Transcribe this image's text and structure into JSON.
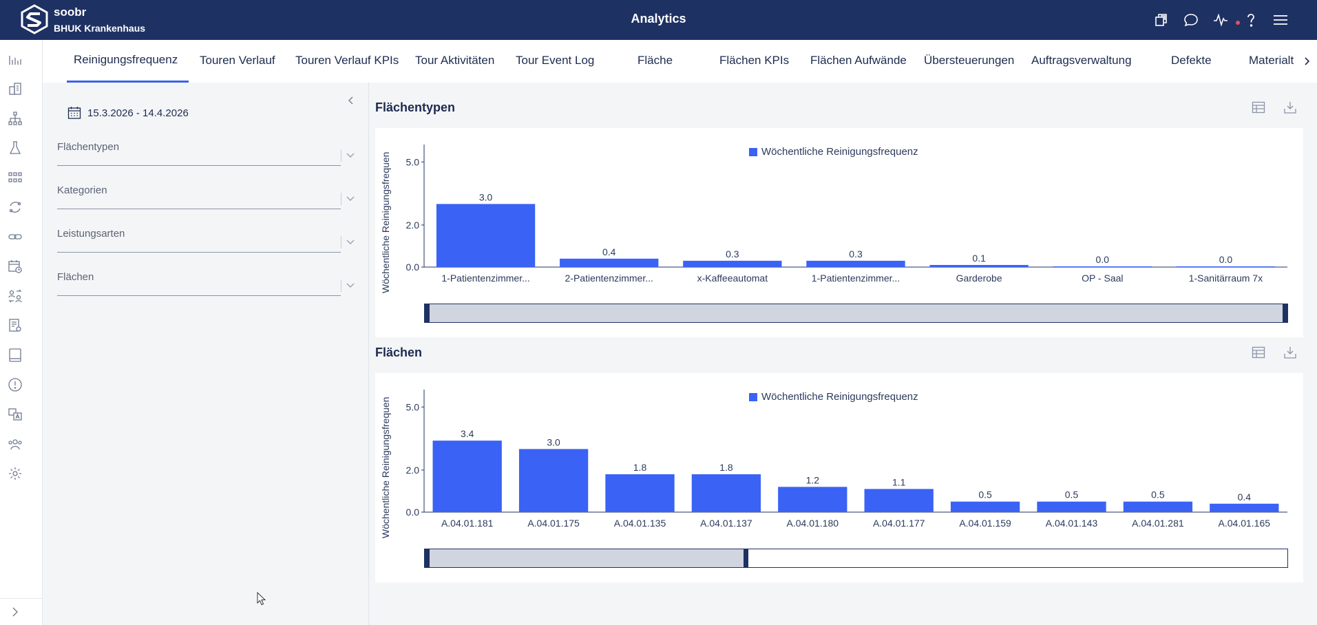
{
  "header": {
    "brand_name": "soobr",
    "brand_sub": "BHUK Krankenhaus",
    "title": "Analytics",
    "icons": [
      "copy-icon",
      "chat-icon",
      "activity-icon",
      "help-icon",
      "menu-icon"
    ]
  },
  "rail": {
    "items": [
      "bar-chart-icon",
      "building-icon",
      "hierarchy-icon",
      "flask-icon",
      "grid-icon",
      "cycle-icon",
      "link-icon",
      "calendar-clock-icon",
      "swap-users-icon",
      "report-icon",
      "tablet-icon",
      "alert-icon",
      "translate-icon",
      "team-icon",
      "settings-icon"
    ],
    "toggle": "chevron-right-icon"
  },
  "tabs": [
    {
      "label": "Reinigungsfrequenz",
      "active": true
    },
    {
      "label": "Touren Verlauf"
    },
    {
      "label": "Touren Verlauf KPIs"
    },
    {
      "label": "Tour Aktivitäten"
    },
    {
      "label": "Tour Event Log"
    },
    {
      "label": "Fläche"
    },
    {
      "label": "Flächen KPIs"
    },
    {
      "label": "Flächen Aufwände"
    },
    {
      "label": "Übersteuerungen"
    },
    {
      "label": "Auftragsverwaltung"
    },
    {
      "label": "Defekte"
    },
    {
      "label": "Materialt"
    }
  ],
  "filters": {
    "date_range": "15.3.2026 - 14.4.2026",
    "fields": [
      {
        "label": "Flächentypen"
      },
      {
        "label": "Kategorien"
      },
      {
        "label": "Leistungsarten"
      },
      {
        "label": "Flächen"
      }
    ]
  },
  "sections": [
    {
      "title": "Flächentypen"
    },
    {
      "title": "Flächen"
    }
  ],
  "chart_data": [
    {
      "type": "bar",
      "title": "Flächentypen",
      "ylabel": "Wöchentliche Reinigungsfrequen",
      "legend": [
        "Wöchentliche Reinigungsfrequenz"
      ],
      "legend_position": "top-center",
      "categories": [
        "1-Patientenzimmer...",
        "2-Patientenzimmer...",
        "x-Kaffeeautomat",
        "1-Patientenzimmer...",
        "Garderobe",
        "OP - Saal",
        "1-Sanitärraum 7x"
      ],
      "series": [
        {
          "name": "Wöchentliche Reinigungsfrequenz",
          "values": [
            3.0,
            0.4,
            0.3,
            0.3,
            0.1,
            0.0,
            0.0
          ],
          "labels": [
            "3.0",
            "0.4",
            "0.3",
            "0.3",
            "0.1",
            "0.0",
            "0.0"
          ]
        }
      ],
      "yticks": [
        0.0,
        2.0,
        5.0
      ],
      "ytick_labels": [
        "0.0",
        "2.0",
        "5.0"
      ],
      "ylim": [
        0,
        5.5
      ],
      "grid": false,
      "scroll_window": [
        0,
        1
      ],
      "color": "#3a62f5"
    },
    {
      "type": "bar",
      "title": "Flächen",
      "ylabel": "Wöchentliche Reinigungsfrequen",
      "legend": [
        "Wöchentliche Reinigungsfrequenz"
      ],
      "legend_position": "top-center",
      "categories": [
        "A.04.01.181",
        "A.04.01.175",
        "A.04.01.135",
        "A.04.01.137",
        "A.04.01.180",
        "A.04.01.177",
        "A.04.01.159",
        "A.04.01.143",
        "A.04.01.281",
        "A.04.01.165"
      ],
      "series": [
        {
          "name": "Wöchentliche Reinigungsfrequenz",
          "values": [
            3.4,
            3.0,
            1.8,
            1.8,
            1.2,
            1.1,
            0.5,
            0.5,
            0.5,
            0.4
          ],
          "labels": [
            "3.4",
            "3.0",
            "1.8",
            "1.8",
            "1.2",
            "1.1",
            "0.5",
            "0.5",
            "0.5",
            "0.4"
          ]
        }
      ],
      "yticks": [
        0.0,
        2.0,
        5.0
      ],
      "ytick_labels": [
        "0.0",
        "2.0",
        "5.0"
      ],
      "ylim": [
        0,
        5.5
      ],
      "grid": false,
      "scroll_window": [
        0,
        0.375
      ],
      "color": "#3a62f5"
    }
  ],
  "colors": {
    "header": "#1e3163",
    "accent": "#3b63e6",
    "bar": "#3a62f5",
    "notification": "#e05262"
  }
}
